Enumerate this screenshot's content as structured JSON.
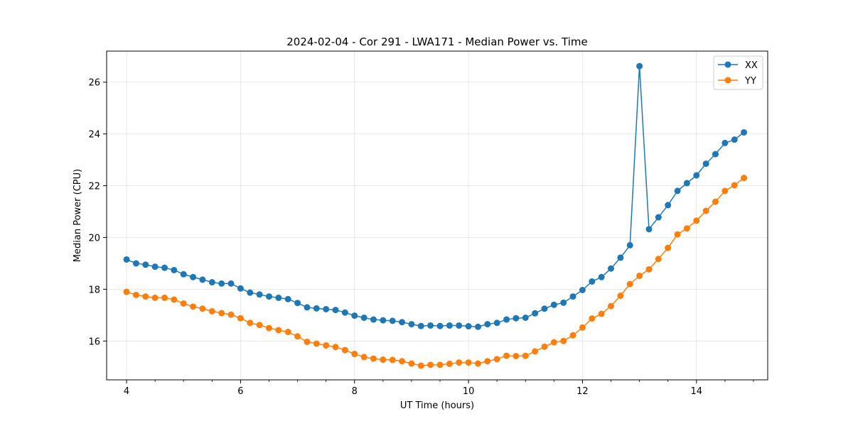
{
  "chart_data": {
    "type": "line",
    "title": "2024-02-04 - Cor 291 - LWA171 - Median Power vs. Time",
    "xlabel": "UT Time (hours)",
    "ylabel": "Median Power (CPU)",
    "xlim": [
      3.65,
      15.25
    ],
    "ylim": [
      14.5,
      27.2
    ],
    "xticks": [
      4,
      6,
      8,
      10,
      12,
      14
    ],
    "xtick_labels": [
      "4",
      "6",
      "8",
      "10",
      "12",
      "14"
    ],
    "yticks": [
      16,
      18,
      20,
      22,
      24,
      26
    ],
    "ytick_labels": [
      "16",
      "18",
      "20",
      "22",
      "24",
      "26"
    ],
    "grid": true,
    "legend_position": "top-right",
    "x": [
      4.0,
      4.167,
      4.333,
      4.5,
      4.667,
      4.833,
      5.0,
      5.167,
      5.333,
      5.5,
      5.667,
      5.833,
      6.0,
      6.167,
      6.333,
      6.5,
      6.667,
      6.833,
      7.0,
      7.167,
      7.333,
      7.5,
      7.667,
      7.833,
      8.0,
      8.167,
      8.333,
      8.5,
      8.667,
      8.833,
      9.0,
      9.167,
      9.333,
      9.5,
      9.667,
      9.833,
      10.0,
      10.167,
      10.333,
      10.5,
      10.667,
      10.833,
      11.0,
      11.167,
      11.333,
      11.5,
      11.667,
      11.833,
      12.0,
      12.167,
      12.333,
      12.5,
      12.667,
      12.833,
      13.0,
      13.167,
      13.333,
      13.5,
      13.667,
      13.833,
      14.0,
      14.167,
      14.333,
      14.5,
      14.667,
      14.833
    ],
    "series": [
      {
        "name": "XX",
        "color": "#1f77b4",
        "values": [
          19.15,
          19.0,
          18.95,
          18.87,
          18.83,
          18.74,
          18.58,
          18.47,
          18.37,
          18.27,
          18.22,
          18.22,
          18.03,
          17.87,
          17.8,
          17.72,
          17.67,
          17.62,
          17.47,
          17.3,
          17.26,
          17.23,
          17.2,
          17.1,
          16.98,
          16.9,
          16.83,
          16.8,
          16.78,
          16.73,
          16.65,
          16.58,
          16.6,
          16.58,
          16.6,
          16.6,
          16.57,
          16.55,
          16.65,
          16.7,
          16.83,
          16.88,
          16.9,
          17.07,
          17.25,
          17.4,
          17.48,
          17.72,
          17.97,
          18.3,
          18.47,
          18.8,
          19.22,
          19.7,
          26.62,
          20.32,
          20.78,
          21.25,
          21.8,
          22.1,
          22.4,
          22.85,
          23.22,
          23.65,
          23.78,
          24.06
        ]
      },
      {
        "name": "YY",
        "color": "#ff7f0e",
        "values": [
          17.9,
          17.78,
          17.72,
          17.67,
          17.67,
          17.6,
          17.45,
          17.33,
          17.25,
          17.15,
          17.08,
          17.02,
          16.88,
          16.7,
          16.62,
          16.5,
          16.42,
          16.35,
          16.18,
          15.97,
          15.9,
          15.83,
          15.77,
          15.65,
          15.5,
          15.38,
          15.32,
          15.28,
          15.27,
          15.22,
          15.13,
          15.05,
          15.08,
          15.08,
          15.12,
          15.17,
          15.17,
          15.13,
          15.22,
          15.3,
          15.43,
          15.42,
          15.43,
          15.6,
          15.78,
          15.95,
          16.0,
          16.22,
          16.52,
          16.87,
          17.05,
          17.35,
          17.75,
          18.2,
          18.52,
          18.77,
          19.17,
          19.6,
          20.12,
          20.35,
          20.65,
          21.03,
          21.38,
          21.8,
          22.02,
          22.3
        ]
      }
    ]
  }
}
